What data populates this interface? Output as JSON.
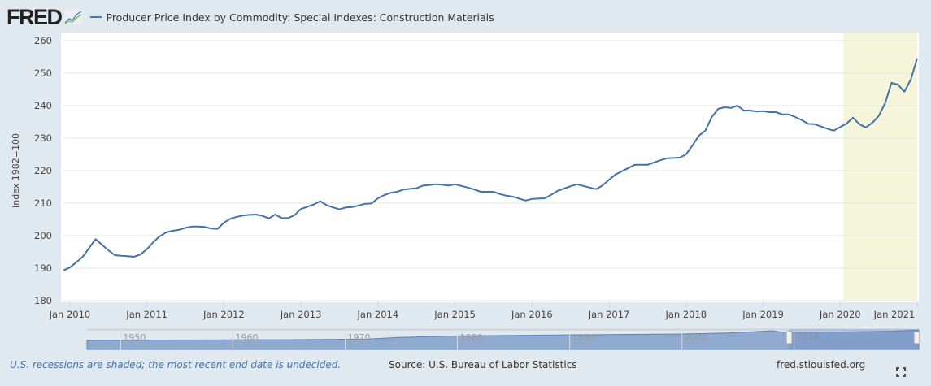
{
  "header": {
    "logo_text": "FRED",
    "legend_label": "Producer Price Index by Commodity: Special Indexes: Construction Materials"
  },
  "footer": {
    "recession_note": "U.S. recessions are shaded; the most recent end date is undecided.",
    "source": "Source: U.S. Bureau of Labor Statistics",
    "site": "fred.stlouisfed.org",
    "fullscreen_icon": "expand-icon"
  },
  "navigator": {
    "year_labels": [
      "1950",
      "1960",
      "1970",
      "1980",
      "1990",
      "2000",
      "2010"
    ]
  },
  "colors": {
    "series": "#4572a7",
    "recession": "#f5f5dc",
    "background": "#e1e9f0"
  },
  "chart_data": {
    "type": "line",
    "title": "",
    "xlabel": "",
    "ylabel": "Index 1982=100",
    "ylim": [
      180,
      260
    ],
    "yticks": [
      180,
      190,
      200,
      210,
      220,
      230,
      240,
      250,
      260
    ],
    "xticks": [
      "Jan 2010",
      "Jan 2011",
      "Jan 2012",
      "Jan 2013",
      "Jan 2014",
      "Jan 2015",
      "Jan 2016",
      "Jan 2017",
      "Jan 2018",
      "Jan 2019",
      "Jan 2020",
      "Jan 2021"
    ],
    "grid": true,
    "legend": "top-left",
    "recession_shading": {
      "start": "2020-02",
      "end": "2021-01"
    },
    "series": [
      {
        "name": "Producer Price Index by Commodity: Special Indexes: Construction Materials",
        "x": [
          "2009-12",
          "2010-01",
          "2010-02",
          "2010-03",
          "2010-04",
          "2010-05",
          "2010-06",
          "2010-07",
          "2010-08",
          "2010-09",
          "2010-10",
          "2010-11",
          "2010-12",
          "2011-01",
          "2011-02",
          "2011-03",
          "2011-04",
          "2011-05",
          "2011-06",
          "2011-07",
          "2011-08",
          "2011-09",
          "2011-10",
          "2011-11",
          "2011-12",
          "2012-01",
          "2012-02",
          "2012-03",
          "2012-04",
          "2012-05",
          "2012-06",
          "2012-07",
          "2012-08",
          "2012-09",
          "2012-10",
          "2012-11",
          "2012-12",
          "2013-01",
          "2013-02",
          "2013-03",
          "2013-04",
          "2013-05",
          "2013-06",
          "2013-07",
          "2013-08",
          "2013-09",
          "2013-10",
          "2013-11",
          "2013-12",
          "2014-01",
          "2014-02",
          "2014-03",
          "2014-04",
          "2014-05",
          "2014-06",
          "2014-07",
          "2014-08",
          "2014-09",
          "2014-10",
          "2014-11",
          "2014-12",
          "2015-01",
          "2015-02",
          "2015-03",
          "2015-04",
          "2015-05",
          "2015-06",
          "2015-07",
          "2015-08",
          "2015-09",
          "2015-10",
          "2015-11",
          "2015-12",
          "2016-01",
          "2016-02",
          "2016-03",
          "2016-04",
          "2016-05",
          "2016-06",
          "2016-07",
          "2016-08",
          "2016-09",
          "2016-10",
          "2016-11",
          "2016-12",
          "2017-01",
          "2017-02",
          "2017-03",
          "2017-04",
          "2017-05",
          "2017-06",
          "2017-07",
          "2017-08",
          "2017-09",
          "2017-10",
          "2017-11",
          "2017-12",
          "2018-01",
          "2018-02",
          "2018-03",
          "2018-04",
          "2018-05",
          "2018-06",
          "2018-07",
          "2018-08",
          "2018-09",
          "2018-10",
          "2018-11",
          "2018-12",
          "2019-01",
          "2019-02",
          "2019-03",
          "2019-04",
          "2019-05",
          "2019-06",
          "2019-07",
          "2019-08",
          "2019-09",
          "2019-10",
          "2019-11",
          "2019-12",
          "2020-01",
          "2020-02",
          "2020-03",
          "2020-04",
          "2020-05",
          "2020-06",
          "2020-07",
          "2020-08",
          "2020-09",
          "2020-10",
          "2020-11",
          "2020-12",
          "2021-01"
        ],
        "values": [
          189.3,
          190.2,
          191.8,
          193.5,
          196.2,
          198.9,
          197.2,
          195.5,
          194.0,
          193.8,
          193.7,
          193.5,
          194.2,
          195.8,
          198.0,
          199.8,
          201.0,
          201.5,
          201.8,
          202.4,
          202.8,
          202.8,
          202.7,
          202.2,
          202.1,
          204.0,
          205.2,
          205.8,
          206.2,
          206.4,
          206.5,
          206.1,
          205.3,
          206.5,
          205.4,
          205.4,
          206.3,
          208.2,
          208.9,
          209.6,
          210.6,
          209.4,
          208.7,
          208.1,
          208.7,
          208.8,
          209.3,
          209.8,
          209.9,
          211.5,
          212.5,
          213.2,
          213.5,
          214.2,
          214.4,
          214.6,
          215.4,
          215.6,
          215.8,
          215.7,
          215.4,
          215.8,
          215.3,
          214.8,
          214.2,
          213.5,
          213.5,
          213.5,
          212.8,
          212.3,
          212.0,
          211.4,
          210.8,
          211.3,
          211.4,
          211.5,
          212.6,
          213.8,
          214.5,
          215.2,
          215.8,
          215.3,
          214.8,
          214.3,
          215.5,
          217.2,
          218.8,
          219.8,
          220.8,
          221.8,
          221.8,
          221.8,
          222.5,
          223.2,
          223.8,
          223.9,
          224.0,
          225.0,
          227.8,
          230.8,
          232.3,
          236.5,
          239.0,
          239.5,
          239.3,
          240.0,
          238.5,
          238.5,
          238.2,
          238.3,
          238.0,
          238.0,
          237.3,
          237.3,
          236.5,
          235.6,
          234.4,
          234.3,
          233.6,
          232.9,
          232.3,
          233.4,
          234.5,
          236.3,
          234.3,
          233.3,
          234.7,
          236.8,
          240.7,
          247.0,
          246.5,
          244.3,
          248.0,
          254.6
        ]
      }
    ]
  }
}
